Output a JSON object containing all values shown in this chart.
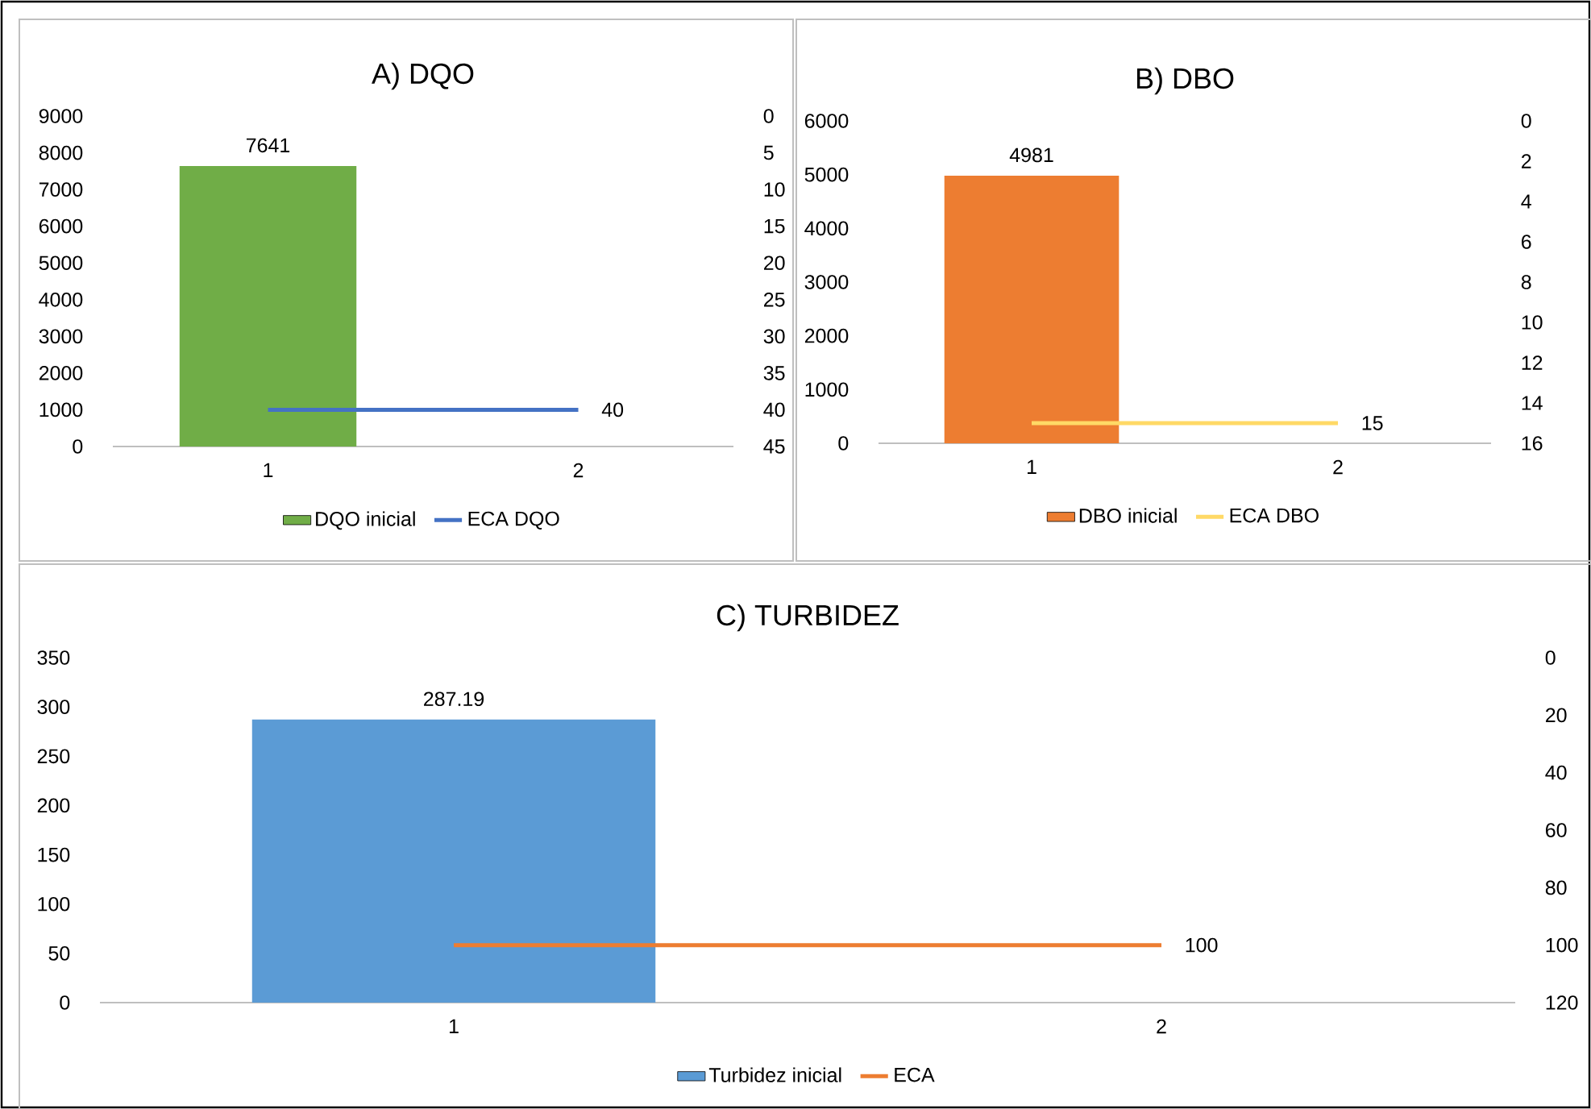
{
  "chart_data": [
    {
      "type": "bar",
      "title": "A) DQO",
      "categories": [
        "1",
        "2"
      ],
      "series": [
        {
          "name": "DQO inicial",
          "color": "#70ad47",
          "values": [
            7641,
            null
          ],
          "value_labels": [
            "7641",
            null
          ]
        },
        {
          "name": "ECA DQO",
          "type": "line",
          "axis": "y2",
          "color": "#4472c4",
          "values": [
            40,
            40
          ],
          "value_labels": [
            null,
            "40"
          ]
        }
      ],
      "ylim": [
        0,
        9000
      ],
      "yticks": [
        0,
        1000,
        2000,
        3000,
        4000,
        5000,
        6000,
        7000,
        8000,
        9000
      ],
      "y2lim": [
        45,
        0
      ],
      "y2ticks": [
        0,
        5,
        10,
        15,
        20,
        25,
        30,
        35,
        40,
        45
      ],
      "legend": "bottom",
      "grid": false
    },
    {
      "type": "bar",
      "title": "B) DBO",
      "categories": [
        "1",
        "2"
      ],
      "series": [
        {
          "name": "DBO inicial",
          "color": "#ed7d31",
          "values": [
            4981,
            null
          ],
          "value_labels": [
            "4981",
            null
          ]
        },
        {
          "name": "ECA DBO",
          "type": "line",
          "axis": "y2",
          "color": "#ffd966",
          "values": [
            15,
            15
          ],
          "value_labels": [
            null,
            "15"
          ]
        }
      ],
      "ylim": [
        0,
        6000
      ],
      "yticks": [
        0,
        1000,
        2000,
        3000,
        4000,
        5000,
        6000
      ],
      "y2lim": [
        16,
        0
      ],
      "y2ticks": [
        0,
        2,
        4,
        6,
        8,
        10,
        12,
        14,
        16
      ],
      "legend": "bottom",
      "grid": false
    },
    {
      "type": "bar",
      "title": "C) TURBIDEZ",
      "categories": [
        "1",
        "2"
      ],
      "series": [
        {
          "name": "Turbidez inicial",
          "color": "#5b9bd5",
          "values": [
            287.19,
            null
          ],
          "value_labels": [
            "287.19",
            null
          ]
        },
        {
          "name": "ECA",
          "type": "line",
          "axis": "y2",
          "color": "#ed7d31",
          "values": [
            100,
            100
          ],
          "value_labels": [
            null,
            "100"
          ]
        }
      ],
      "ylim": [
        0,
        350
      ],
      "yticks": [
        0,
        50,
        100,
        150,
        200,
        250,
        300,
        350
      ],
      "y2lim": [
        120,
        0
      ],
      "y2ticks": [
        0,
        20,
        40,
        60,
        80,
        100,
        120
      ],
      "legend": "bottom",
      "grid": false
    }
  ]
}
